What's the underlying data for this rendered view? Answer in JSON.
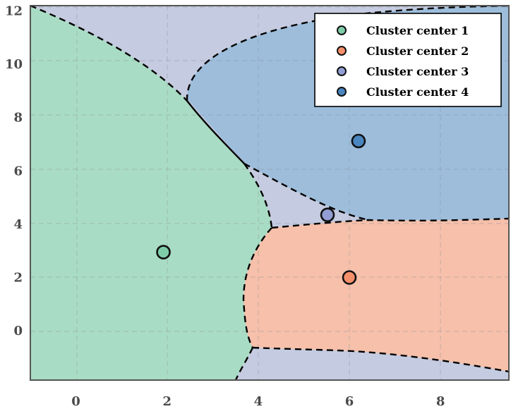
{
  "chart_data": {
    "type": "scatter",
    "xlim": [
      -1,
      9.5
    ],
    "ylim": [
      -1.85,
      12.2
    ],
    "xticks": [
      0,
      2,
      4,
      6,
      8
    ],
    "yticks": [
      0,
      2,
      4,
      6,
      8,
      10,
      12
    ],
    "grid": true,
    "legend_placement": "top-right",
    "background_color": "#c5cbe0",
    "series": [
      {
        "name": "Cluster center 1",
        "x": 1.92,
        "y": 2.95,
        "color": "#7fcca9",
        "region_color": "#a9dcc4"
      },
      {
        "name": "Cluster center 2",
        "x": 6.0,
        "y": 2.0,
        "color": "#f6906b",
        "region_color": "#f6c0aa"
      },
      {
        "name": "Cluster center 3",
        "x": 5.52,
        "y": 4.35,
        "color": "#929ed3",
        "region_color": "#c5cbe0"
      },
      {
        "name": "Cluster center 4",
        "x": 6.2,
        "y": 7.12,
        "color": "#4a86c0",
        "region_color": "#9dbddb"
      }
    ]
  }
}
